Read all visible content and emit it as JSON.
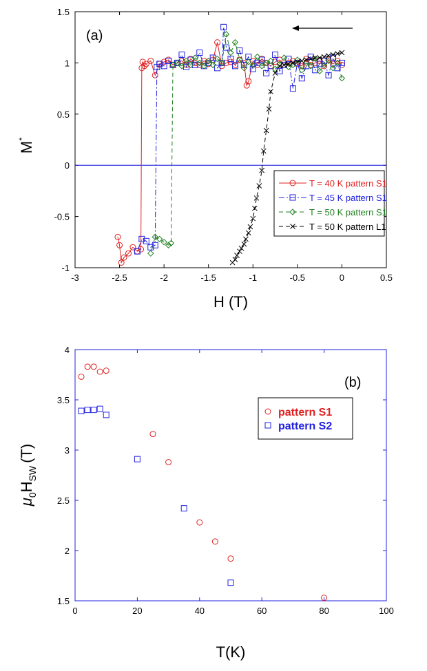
{
  "chart_data": [
    {
      "type": "line",
      "panel_label": "(a)",
      "xlabel": "H (T)",
      "ylabel": "M*",
      "ylabel_main": "M",
      "ylabel_sup": "*",
      "xlim": [
        -3,
        0.5
      ],
      "ylim": [
        -1,
        1.5
      ],
      "xticks": [
        "-3",
        "-2.5",
        "-2",
        "-1.5",
        "-1",
        "-0.5",
        "0",
        "0.5"
      ],
      "yticks": [
        "-1",
        "-0.5",
        "0",
        "0.5",
        "1",
        "1.5"
      ],
      "reference_line_y": 0,
      "annotation": "sweep direction arrow (decreasing H)",
      "legend_position": "lower-right",
      "series": [
        {
          "name": "T = 40 K pattern S1",
          "color": "#e02020",
          "marker": "circle",
          "line": "solid",
          "x": [
            0.0,
            -0.05,
            -0.1,
            -0.15,
            -0.2,
            -0.25,
            -0.3,
            -0.35,
            -0.4,
            -0.45,
            -0.5,
            -0.55,
            -0.6,
            -0.65,
            -0.7,
            -0.75,
            -0.8,
            -0.85,
            -0.9,
            -0.95,
            -1.0,
            -1.05,
            -1.07,
            -1.1,
            -1.15,
            -1.2,
            -1.25,
            -1.3,
            -1.35,
            -1.4,
            -1.45,
            -1.5,
            -1.55,
            -1.6,
            -1.65,
            -1.7,
            -1.75,
            -1.8,
            -1.85,
            -1.9,
            -1.95,
            -2.0,
            -2.05,
            -2.1,
            -2.15,
            -2.2,
            -2.22,
            -2.24,
            -2.25,
            -2.26,
            -2.3,
            -2.35,
            -2.4,
            -2.45,
            -2.48,
            -2.5,
            -2.52
          ],
          "y": [
            0.98,
            1.02,
            0.99,
            1.03,
            0.97,
            1.02,
            1.0,
            0.98,
            1.04,
            0.97,
            0.99,
            1.02,
            1.0,
            0.98,
            1.03,
            1.01,
            0.97,
            1.0,
            1.04,
            0.98,
            1.02,
            0.82,
            0.78,
            1.0,
            1.03,
            0.98,
            1.01,
            1.0,
            0.97,
            1.2,
            1.03,
            0.99,
            1.02,
            0.98,
            1.0,
            1.04,
            0.98,
            1.02,
            1.0,
            0.98,
            1.03,
            1.01,
            0.99,
            0.88,
            1.02,
            0.99,
            0.97,
            1.01,
            0.95,
            -0.82,
            -0.84,
            -0.8,
            -0.86,
            -0.9,
            -0.95,
            -0.78,
            -0.7
          ]
        },
        {
          "name": "T = 45 K pattern S1",
          "color": "#2020e0",
          "marker": "square",
          "line": "dash-dot",
          "x": [
            0.0,
            -0.05,
            -0.1,
            -0.15,
            -0.2,
            -0.25,
            -0.3,
            -0.35,
            -0.4,
            -0.45,
            -0.5,
            -0.55,
            -0.6,
            -0.65,
            -0.7,
            -0.75,
            -0.8,
            -0.85,
            -0.9,
            -0.95,
            -1.0,
            -1.05,
            -1.1,
            -1.15,
            -1.2,
            -1.25,
            -1.3,
            -1.33,
            -1.35,
            -1.4,
            -1.45,
            -1.5,
            -1.55,
            -1.6,
            -1.65,
            -1.7,
            -1.75,
            -1.8,
            -1.85,
            -1.9,
            -1.95,
            -2.0,
            -2.05,
            -2.08,
            -2.1,
            -2.15,
            -2.2,
            -2.25,
            -2.3
          ],
          "y": [
            1.0,
            0.95,
            1.05,
            0.88,
            1.02,
            0.99,
            0.93,
            1.06,
            0.97,
            0.85,
            1.0,
            0.75,
            1.04,
            0.98,
            0.92,
            1.08,
            0.97,
            0.9,
            1.03,
            1.0,
            0.94,
            1.06,
            0.98,
            1.12,
            0.97,
            1.04,
            1.15,
            1.35,
            1.0,
            0.95,
            1.05,
            1.0,
            0.97,
            1.1,
            0.98,
            1.03,
            0.96,
            1.08,
            1.0,
            0.98,
            1.02,
            0.97,
            0.99,
            0.96,
            -0.78,
            -0.8,
            -0.74,
            -0.72,
            -0.84
          ]
        },
        {
          "name": "T = 50 K pattern S1",
          "color": "#208020",
          "marker": "diamond",
          "line": "dashed",
          "x": [
            0.0,
            -0.05,
            -0.1,
            -0.15,
            -0.2,
            -0.25,
            -0.3,
            -0.35,
            -0.4,
            -0.45,
            -0.5,
            -0.55,
            -0.6,
            -0.65,
            -0.7,
            -0.75,
            -0.8,
            -0.85,
            -0.9,
            -0.95,
            -1.0,
            -1.05,
            -1.1,
            -1.15,
            -1.2,
            -1.25,
            -1.3,
            -1.35,
            -1.4,
            -1.45,
            -1.5,
            -1.55,
            -1.6,
            -1.65,
            -1.7,
            -1.75,
            -1.8,
            -1.85,
            -1.9,
            -1.92,
            -1.95,
            -2.0,
            -2.05,
            -2.1,
            -2.15
          ],
          "y": [
            0.85,
            1.0,
            0.95,
            1.02,
            0.98,
            0.92,
            1.04,
            0.97,
            1.0,
            0.93,
            1.03,
            0.98,
            0.96,
            1.05,
            0.99,
            0.94,
            1.02,
            1.0,
            0.97,
            1.06,
            0.98,
            1.01,
            0.95,
            1.03,
            1.2,
            1.1,
            1.28,
            1.0,
            1.04,
            0.98,
            1.02,
            0.97,
            1.0,
            1.05,
            0.98,
            1.02,
            0.97,
            1.0,
            0.98,
            -0.76,
            -0.78,
            -0.75,
            -0.72,
            -0.7,
            -0.86
          ]
        },
        {
          "name": "T = 50 K pattern L1",
          "color": "#000000",
          "marker": "x",
          "line": "dashed",
          "x": [
            0.0,
            -0.05,
            -0.1,
            -0.15,
            -0.2,
            -0.25,
            -0.3,
            -0.35,
            -0.4,
            -0.45,
            -0.5,
            -0.55,
            -0.6,
            -0.65,
            -0.7,
            -0.75,
            -0.8,
            -0.82,
            -0.85,
            -0.88,
            -0.9,
            -0.93,
            -0.96,
            -0.98,
            -1.0,
            -1.03,
            -1.05,
            -1.08,
            -1.1,
            -1.13,
            -1.15,
            -1.18,
            -1.2,
            -1.23
          ],
          "y": [
            1.1,
            1.09,
            1.08,
            1.07,
            1.06,
            1.05,
            1.05,
            1.04,
            1.03,
            1.02,
            1.01,
            1.0,
            0.99,
            0.98,
            0.97,
            0.9,
            0.72,
            0.55,
            0.34,
            0.14,
            -0.05,
            -0.2,
            -0.32,
            -0.42,
            -0.52,
            -0.6,
            -0.66,
            -0.72,
            -0.77,
            -0.81,
            -0.84,
            -0.88,
            -0.92,
            -0.95
          ]
        }
      ]
    },
    {
      "type": "scatter",
      "panel_label": "(b)",
      "xlabel": "T(K)",
      "ylabel": "μ0HSW (T)",
      "ylabel_mu": "μ",
      "ylabel_sub0": "0",
      "ylabel_H": "H",
      "ylabel_subsw": "SW",
      "ylabel_unit": "(T)",
      "xlim": [
        0,
        100
      ],
      "ylim": [
        1.5,
        4
      ],
      "xticks": [
        "0",
        "20",
        "40",
        "60",
        "80",
        "100"
      ],
      "yticks": [
        "1.5",
        "2",
        "2.5",
        "3",
        "3.5",
        "4"
      ],
      "legend_position": "upper-right",
      "series": [
        {
          "name": "pattern S1",
          "color": "#e02020",
          "marker": "circle",
          "x": [
            2,
            4,
            6,
            8,
            10,
            25,
            30,
            40,
            45,
            50,
            80
          ],
          "y": [
            3.73,
            3.83,
            3.83,
            3.78,
            3.79,
            3.16,
            2.88,
            2.28,
            2.09,
            1.92,
            1.53
          ]
        },
        {
          "name": "pattern S2",
          "color": "#2020e0",
          "marker": "square",
          "x": [
            2,
            4,
            6,
            8,
            10,
            20,
            35,
            50
          ],
          "y": [
            3.39,
            3.4,
            3.4,
            3.41,
            3.35,
            2.91,
            2.42,
            1.68
          ]
        }
      ]
    }
  ]
}
